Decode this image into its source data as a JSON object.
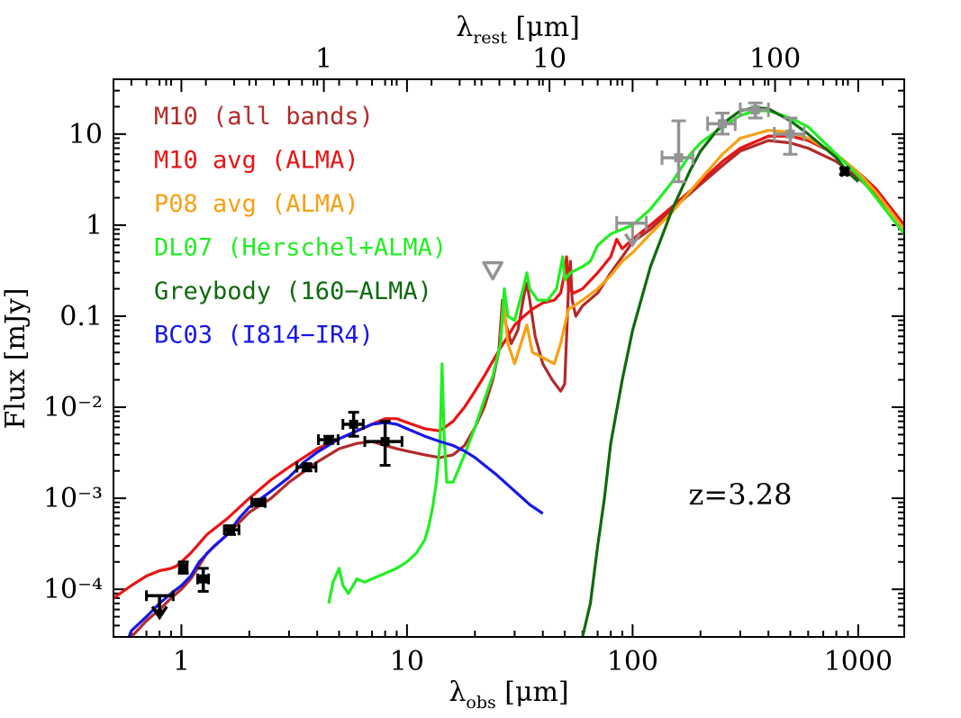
{
  "chart_data": {
    "type": "line",
    "xscale": "log",
    "yscale": "log",
    "xlim": [
      0.5,
      1600
    ],
    "ylim": [
      3e-05,
      40
    ],
    "top_axis_ticks": [
      "1",
      "10",
      "100"
    ],
    "top_axis_tick_values": [
      1,
      10,
      100
    ],
    "redshift": 3.28,
    "x_ticks": [
      "1",
      "10",
      "100",
      "1000"
    ],
    "x_tick_values": [
      1,
      10,
      100,
      1000
    ],
    "y_ticks": [
      "10⁻⁴",
      "10⁻³",
      "10⁻²",
      "0.1",
      "1",
      "10"
    ],
    "y_tick_values": [
      0.0001,
      0.001,
      0.01,
      0.1,
      1,
      10
    ],
    "top_xlabel": {
      "main": "λ",
      "sub": "rest",
      "unit": " [μm]"
    },
    "xlabel": {
      "main": "λ",
      "sub": "obs",
      "unit": " [μm]"
    },
    "ylabel": "Flux [mJy]",
    "annotation": "z=3.28",
    "legend_placement": "top-left",
    "series": [
      {
        "name": "M10 (all bands)",
        "color": "#b22a2a",
        "points": [
          [
            0.5,
            2.5e-05
          ],
          [
            0.6,
            3e-05
          ],
          [
            0.7,
            4.5e-05
          ],
          [
            0.8,
            6e-05
          ],
          [
            0.9,
            8e-05
          ],
          [
            1.0,
            0.0001
          ],
          [
            1.1,
            0.00013
          ],
          [
            1.3,
            0.00025
          ],
          [
            1.6,
            0.0004
          ],
          [
            2.0,
            0.0007
          ],
          [
            2.5,
            0.001
          ],
          [
            3.0,
            0.0015
          ],
          [
            4.0,
            0.0025
          ],
          [
            5.0,
            0.0035
          ],
          [
            6.0,
            0.004
          ],
          [
            7.0,
            0.0042
          ],
          [
            8.0,
            0.0038
          ],
          [
            9.0,
            0.0035
          ],
          [
            10.0,
            0.0033
          ],
          [
            12.0,
            0.003
          ],
          [
            14.0,
            0.0028
          ],
          [
            16.0,
            0.003
          ],
          [
            18.0,
            0.0038
          ],
          [
            20.0,
            0.006
          ],
          [
            22.0,
            0.01
          ],
          [
            24.0,
            0.02
          ],
          [
            25.5,
            0.04
          ],
          [
            26.5,
            0.15
          ],
          [
            27.5,
            0.08
          ],
          [
            29.0,
            0.05
          ],
          [
            31.0,
            0.07
          ],
          [
            33.0,
            0.17
          ],
          [
            34.0,
            0.23
          ],
          [
            35.0,
            0.15
          ],
          [
            37.0,
            0.06
          ],
          [
            40.0,
            0.03
          ],
          [
            44.0,
            0.02
          ],
          [
            48.0,
            0.015
          ],
          [
            50.0,
            0.018
          ],
          [
            52.0,
            0.2
          ],
          [
            53.0,
            0.4
          ],
          [
            54.0,
            0.15
          ],
          [
            56.0,
            0.1
          ],
          [
            60.0,
            0.13
          ],
          [
            70.0,
            0.18
          ],
          [
            80.0,
            0.3
          ],
          [
            90.0,
            0.45
          ],
          [
            100.0,
            0.65
          ],
          [
            120.0,
            0.9
          ],
          [
            150.0,
            1.5
          ],
          [
            200.0,
            2.8
          ],
          [
            250.0,
            4.5
          ],
          [
            300.0,
            6.5
          ],
          [
            400.0,
            8.5
          ],
          [
            500.0,
            8.0
          ],
          [
            600.0,
            7.0
          ],
          [
            800.0,
            5.0
          ],
          [
            1000.0,
            3.3
          ],
          [
            1200.0,
            2.2
          ],
          [
            1600.0,
            0.95
          ]
        ]
      },
      {
        "name": "M10 avg (ALMA)",
        "color": "#e81414",
        "points": [
          [
            0.5,
            8e-05
          ],
          [
            0.6,
            0.00011
          ],
          [
            0.7,
            0.00014
          ],
          [
            0.8,
            0.00016
          ],
          [
            0.9,
            0.00017
          ],
          [
            0.95,
            0.00018
          ],
          [
            1.0,
            0.0002
          ],
          [
            1.1,
            0.00025
          ],
          [
            1.3,
            0.0004
          ],
          [
            1.6,
            0.0006
          ],
          [
            2.0,
            0.001
          ],
          [
            2.5,
            0.0016
          ],
          [
            3.0,
            0.0022
          ],
          [
            4.0,
            0.0035
          ],
          [
            5.0,
            0.0045
          ],
          [
            6.0,
            0.0055
          ],
          [
            7.0,
            0.0065
          ],
          [
            8.0,
            0.0075
          ],
          [
            9.0,
            0.0075
          ],
          [
            10.0,
            0.0068
          ],
          [
            12.0,
            0.0058
          ],
          [
            14.0,
            0.0055
          ],
          [
            16.0,
            0.007
          ],
          [
            18.0,
            0.01
          ],
          [
            20.0,
            0.015
          ],
          [
            22.0,
            0.022
          ],
          [
            24.0,
            0.032
          ],
          [
            26.0,
            0.045
          ],
          [
            28.0,
            0.06
          ],
          [
            30.0,
            0.08
          ],
          [
            33.0,
            0.1
          ],
          [
            36.0,
            0.12
          ],
          [
            40.0,
            0.14
          ],
          [
            45.0,
            0.15
          ],
          [
            48.0,
            0.18
          ],
          [
            50.0,
            0.3
          ],
          [
            51.0,
            0.45
          ],
          [
            52.0,
            0.2
          ],
          [
            55.0,
            0.18
          ],
          [
            60.0,
            0.2
          ],
          [
            70.0,
            0.3
          ],
          [
            80.0,
            0.45
          ],
          [
            85.0,
            0.7
          ],
          [
            90.0,
            0.55
          ],
          [
            100.0,
            0.7
          ],
          [
            120.0,
            1.0
          ],
          [
            150.0,
            1.6
          ],
          [
            200.0,
            3.0
          ],
          [
            250.0,
            5.0
          ],
          [
            300.0,
            7.0
          ],
          [
            400.0,
            9.5
          ],
          [
            500.0,
            9.5
          ],
          [
            600.0,
            8.5
          ],
          [
            800.0,
            6.0
          ],
          [
            1000.0,
            3.8
          ],
          [
            1200.0,
            2.5
          ],
          [
            1600.0,
            1.0
          ]
        ]
      },
      {
        "name": "P08 avg (ALMA)",
        "color": "#f7a013",
        "points": [
          [
            26.0,
            0.06
          ],
          [
            27.0,
            0.12
          ],
          [
            28.0,
            0.05
          ],
          [
            30.0,
            0.03
          ],
          [
            32.0,
            0.05
          ],
          [
            34.0,
            0.08
          ],
          [
            36.0,
            0.04
          ],
          [
            40.0,
            0.035
          ],
          [
            45.0,
            0.03
          ],
          [
            48.0,
            0.05
          ],
          [
            52.0,
            0.12
          ],
          [
            55.0,
            0.13
          ],
          [
            60.0,
            0.15
          ],
          [
            70.0,
            0.2
          ],
          [
            80.0,
            0.28
          ],
          [
            90.0,
            0.4
          ],
          [
            100.0,
            0.5
          ],
          [
            120.0,
            0.8
          ],
          [
            150.0,
            1.4
          ],
          [
            200.0,
            3.2
          ],
          [
            250.0,
            6.0
          ],
          [
            300.0,
            9.0
          ],
          [
            400.0,
            11.0
          ],
          [
            500.0,
            10.5
          ],
          [
            600.0,
            9.0
          ],
          [
            800.0,
            6.0
          ],
          [
            1000.0,
            3.8
          ],
          [
            1200.0,
            2.3
          ],
          [
            1600.0,
            0.9
          ]
        ]
      },
      {
        "name": "DL07 (Herschel+ALMA)",
        "color": "#22ee22",
        "points": [
          [
            4.5,
            7e-05
          ],
          [
            4.7,
            0.00012
          ],
          [
            5.0,
            0.00017
          ],
          [
            5.2,
            0.00011
          ],
          [
            5.5,
            9e-05
          ],
          [
            6.0,
            0.00013
          ],
          [
            6.5,
            0.00012
          ],
          [
            7.0,
            0.00013
          ],
          [
            8.0,
            0.00015
          ],
          [
            9.0,
            0.00017
          ],
          [
            10.0,
            0.0002
          ],
          [
            11.0,
            0.00025
          ],
          [
            12.0,
            0.00035
          ],
          [
            12.5,
            0.0005
          ],
          [
            13.0,
            0.0008
          ],
          [
            13.5,
            0.0015
          ],
          [
            14.0,
            0.004
          ],
          [
            14.3,
            0.03
          ],
          [
            14.6,
            0.005
          ],
          [
            15.0,
            0.0015
          ],
          [
            16.0,
            0.0015
          ],
          [
            18.0,
            0.003
          ],
          [
            20.0,
            0.006
          ],
          [
            22.0,
            0.012
          ],
          [
            24.0,
            0.022
          ],
          [
            26.0,
            0.05
          ],
          [
            27.0,
            0.2
          ],
          [
            28.0,
            0.1
          ],
          [
            30.0,
            0.09
          ],
          [
            33.0,
            0.22
          ],
          [
            34.0,
            0.3
          ],
          [
            35.0,
            0.2
          ],
          [
            38.0,
            0.15
          ],
          [
            42.0,
            0.15
          ],
          [
            46.0,
            0.2
          ],
          [
            49.0,
            0.45
          ],
          [
            50.0,
            0.25
          ],
          [
            53.0,
            0.3
          ],
          [
            60.0,
            0.35
          ],
          [
            65.0,
            0.4
          ],
          [
            70.0,
            0.6
          ],
          [
            80.0,
            0.8
          ],
          [
            100.0,
            1.0
          ],
          [
            120.0,
            1.5
          ],
          [
            150.0,
            3.0
          ],
          [
            180.0,
            6.0
          ],
          [
            200.0,
            8.0
          ],
          [
            250.0,
            12.0
          ],
          [
            300.0,
            16.0
          ],
          [
            350.0,
            18.0
          ],
          [
            400.0,
            18.0
          ],
          [
            500.0,
            15.0
          ],
          [
            600.0,
            12.0
          ],
          [
            800.0,
            6.0
          ],
          [
            1000.0,
            3.5
          ],
          [
            1200.0,
            2.0
          ],
          [
            1600.0,
            0.8
          ]
        ]
      },
      {
        "name": "Greybody (160−ALMA)",
        "color": "#0e6a0e",
        "points": [
          [
            60.0,
            3e-05
          ],
          [
            65.0,
            7e-05
          ],
          [
            70.0,
            0.0003
          ],
          [
            75.0,
            0.001
          ],
          [
            80.0,
            0.004
          ],
          [
            90.0,
            0.02
          ],
          [
            100.0,
            0.07
          ],
          [
            120.0,
            0.35
          ],
          [
            150.0,
            1.5
          ],
          [
            180.0,
            4.0
          ],
          [
            200.0,
            6.5
          ],
          [
            250.0,
            13.0
          ],
          [
            300.0,
            18.0
          ],
          [
            350.0,
            19.5
          ],
          [
            400.0,
            19.0
          ],
          [
            500.0,
            14.0
          ],
          [
            600.0,
            10.0
          ],
          [
            800.0,
            5.5
          ],
          [
            900.0,
            3.8
          ],
          [
            1000.0,
            3.0
          ]
        ]
      },
      {
        "name": "BC03 (I814−IR4)",
        "color": "#1717e6",
        "points": [
          [
            0.55,
            2e-05
          ],
          [
            0.6,
            3.5e-05
          ],
          [
            0.7,
            5e-05
          ],
          [
            0.8,
            7e-05
          ],
          [
            0.9,
            9e-05
          ],
          [
            1.0,
            0.00011
          ],
          [
            1.1,
            0.00014
          ],
          [
            1.2,
            0.0002
          ],
          [
            1.4,
            0.0003
          ],
          [
            1.6,
            0.0004
          ],
          [
            1.8,
            0.0006
          ],
          [
            2.0,
            0.0008
          ],
          [
            2.5,
            0.0012
          ],
          [
            3.0,
            0.0017
          ],
          [
            3.5,
            0.0025
          ],
          [
            4.0,
            0.0032
          ],
          [
            5.0,
            0.0045
          ],
          [
            6.0,
            0.0055
          ],
          [
            7.0,
            0.0065
          ],
          [
            8.0,
            0.0068
          ],
          [
            9.0,
            0.0065
          ],
          [
            10.0,
            0.0058
          ],
          [
            12.0,
            0.0048
          ],
          [
            14.0,
            0.0042
          ],
          [
            16.0,
            0.0038
          ],
          [
            18.0,
            0.0033
          ],
          [
            20.0,
            0.0028
          ],
          [
            25.0,
            0.0018
          ],
          [
            30.0,
            0.0012
          ],
          [
            35.0,
            0.00085
          ],
          [
            40.0,
            0.00068
          ]
        ]
      }
    ],
    "detections": [
      {
        "x": 0.8,
        "y": 8.5e-05,
        "xerr": [
          0.7,
          0.92
        ],
        "yerr": [
          5.8e-05,
          8.5e-05
        ],
        "upper_limit": true
      },
      {
        "x": 1.02,
        "y": 0.00017,
        "xerr": [
          0.98,
          1.06
        ],
        "yerr": [
          0.00015,
          0.0002
        ]
      },
      {
        "x": 1.25,
        "y": 0.00013,
        "xerr": [
          1.18,
          1.32
        ],
        "yerr": [
          9.5e-05,
          0.00017
        ]
      },
      {
        "x": 1.65,
        "y": 0.00045,
        "xerr": [
          1.55,
          1.8
        ],
        "yerr": [
          0.0004,
          0.0005
        ]
      },
      {
        "x": 2.2,
        "y": 0.0009,
        "xerr": [
          2.05,
          2.35
        ],
        "yerr": [
          0.00083,
          0.00097
        ]
      },
      {
        "x": 3.6,
        "y": 0.0022,
        "xerr": [
          3.25,
          3.95
        ],
        "yerr": [
          0.002,
          0.0024
        ]
      },
      {
        "x": 4.5,
        "y": 0.0044,
        "xerr": [
          4.05,
          4.95
        ],
        "yerr": [
          0.004,
          0.0048
        ]
      },
      {
        "x": 5.8,
        "y": 0.0065,
        "xerr": [
          5.2,
          6.4
        ],
        "yerr": [
          0.0048,
          0.0088
        ]
      },
      {
        "x": 8.0,
        "y": 0.0042,
        "xerr": [
          6.5,
          9.5
        ],
        "yerr": [
          0.0023,
          0.007
        ]
      },
      {
        "x": 870.0,
        "y": 3.9,
        "xerr": [
          845,
          895
        ],
        "yerr": [
          3.6,
          4.2
        ]
      }
    ],
    "herschel": [
      {
        "x": 100.0,
        "y": 1.05,
        "xerr": [
          85,
          115
        ],
        "upper_limit": true
      },
      {
        "x": 160.0,
        "y": 5.5,
        "xerr": [
          135,
          185
        ],
        "yerr": [
          3.0,
          14.0
        ]
      },
      {
        "x": 250.0,
        "y": 13.0,
        "xerr": [
          215,
          285
        ],
        "yerr": [
          10.0,
          17.0
        ]
      },
      {
        "x": 350.0,
        "y": 18.5,
        "xerr": [
          300,
          400
        ],
        "yerr": [
          15.0,
          22.0
        ]
      },
      {
        "x": 500.0,
        "y": 10.0,
        "xerr": [
          425,
          575
        ],
        "yerr": [
          6.0,
          15.0
        ]
      }
    ],
    "upper_limit_triangle": {
      "x": 24.0,
      "y": 0.33
    },
    "point_colors": {
      "detection": "#000000",
      "herschel": "#939393"
    }
  }
}
